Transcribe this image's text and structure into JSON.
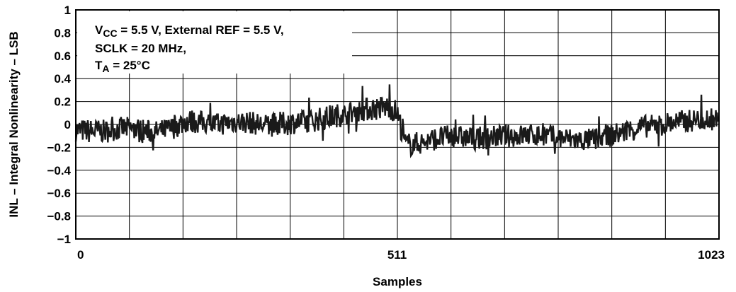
{
  "chart_data": {
    "type": "line",
    "xlabel": "Samples",
    "ylabel": "INL – Integral Nonlinearity – LSB",
    "xlim": [
      0,
      1023
    ],
    "ylim": [
      -1,
      1
    ],
    "x_ticks": [
      "0",
      "511",
      "1023"
    ],
    "y_ticks": [
      "1",
      "0.8",
      "0.6",
      "0.4",
      "0.2",
      "0",
      "−0.2",
      "−0.4",
      "−0.6",
      "−0.8",
      "−1"
    ],
    "grid": true,
    "annotation": {
      "line1_a": "V",
      "line1_sub": "CC",
      "line1_b": " = 5.5 V, External REF = 5.5 V,",
      "line2": "SCLK = 20 MHz,",
      "line3_a": "T",
      "line3_sub": "A",
      "line3_b": " = 25°C"
    },
    "series": [
      {
        "color": "#1a1a1a",
        "x": [
          0,
          25,
          50,
          75,
          100,
          125,
          150,
          175,
          200,
          225,
          250,
          275,
          300,
          325,
          350,
          375,
          400,
          425,
          450,
          475,
          500,
          511,
          525,
          550,
          575,
          600,
          625,
          650,
          675,
          700,
          725,
          750,
          775,
          800,
          825,
          850,
          875,
          900,
          925,
          950,
          975,
          1000,
          1023
        ],
        "y": [
          -0.05,
          -0.06,
          -0.06,
          -0.03,
          -0.05,
          -0.07,
          -0.04,
          0.03,
          0.02,
          0.0,
          0.02,
          0.02,
          -0.01,
          0.0,
          0.02,
          0.03,
          0.06,
          0.09,
          0.12,
          0.14,
          0.15,
          0.1,
          -0.18,
          -0.16,
          -0.12,
          -0.1,
          -0.12,
          -0.12,
          -0.1,
          -0.1,
          -0.09,
          -0.1,
          -0.12,
          -0.14,
          -0.13,
          -0.1,
          -0.06,
          -0.02,
          -0.01,
          0.02,
          0.03,
          0.05,
          0.04
        ],
        "band": [
          0.1,
          0.11,
          0.1,
          0.1,
          0.11,
          0.1,
          0.1,
          0.11,
          0.1,
          0.1,
          0.1,
          0.1,
          0.1,
          0.11,
          0.1,
          0.1,
          0.11,
          0.1,
          0.1,
          0.11,
          0.11,
          0.11,
          0.11,
          0.1,
          0.1,
          0.1,
          0.1,
          0.1,
          0.1,
          0.1,
          0.1,
          0.1,
          0.1,
          0.1,
          0.1,
          0.1,
          0.1,
          0.1,
          0.1,
          0.1,
          0.1,
          0.1,
          0.1
        ]
      }
    ]
  }
}
